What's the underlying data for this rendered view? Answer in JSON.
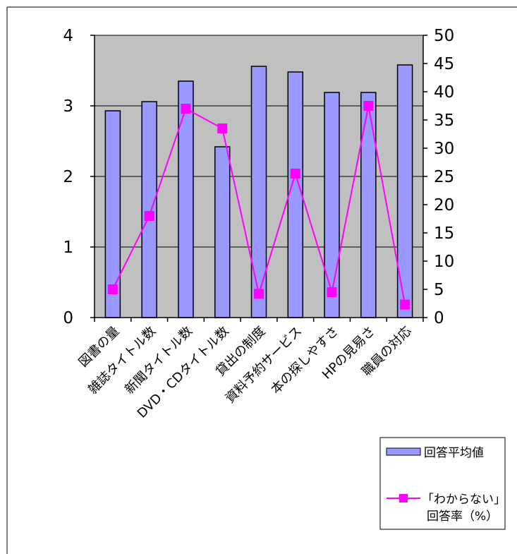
{
  "chart_data": {
    "type": "bar",
    "categories": [
      "図書の量",
      "雑誌タイトル数",
      "新聞タイトル数",
      "DVD・CDタイトル数",
      "貸出の制度",
      "資料予約サービス",
      "本の探しやすさ",
      "HPの見易さ",
      "職員の対応"
    ],
    "series": [
      {
        "name": "回答平均値",
        "type": "bar",
        "axis": "left",
        "color": "#9999ff",
        "values": [
          2.93,
          3.06,
          3.35,
          2.42,
          3.56,
          3.48,
          3.19,
          3.19,
          3.58
        ]
      },
      {
        "name": "「わからない」回答率（%）",
        "type": "line",
        "axis": "right",
        "color": "#ff00ff",
        "marker": "square",
        "values": [
          5.0,
          18.0,
          37.0,
          33.5,
          4.2,
          25.5,
          4.5,
          37.5,
          2.3
        ]
      }
    ],
    "y_left": {
      "ylim": [
        0,
        4
      ],
      "ticks": [
        "0",
        "1",
        "2",
        "3",
        "4"
      ]
    },
    "y_right": {
      "ylim": [
        0,
        50
      ],
      "ticks": [
        "0",
        "5",
        "10",
        "15",
        "20",
        "25",
        "30",
        "35",
        "40",
        "45",
        "50"
      ]
    },
    "plot_background": "#c0c0c0",
    "grid": true,
    "legend_position": "bottom-right"
  },
  "legend": {
    "bar_label": "回答平均値",
    "line_label_1": "「わからない」",
    "line_label_2": "回答率（%）"
  }
}
